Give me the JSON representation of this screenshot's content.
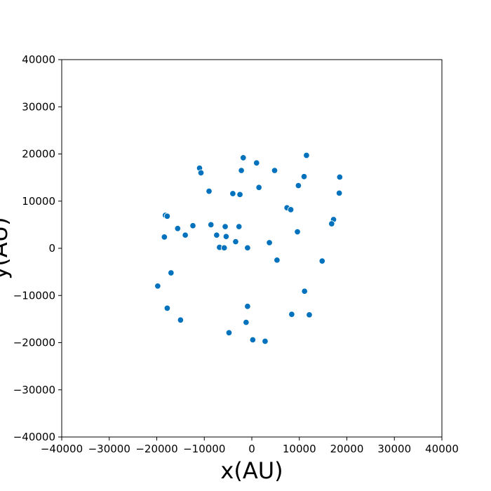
{
  "chart_data": {
    "type": "scatter",
    "title": "",
    "xlabel": "x(AU)",
    "ylabel": "y(AU)",
    "xlim": [
      -40000,
      40000
    ],
    "ylim": [
      -40000,
      40000
    ],
    "xticks": [
      -40000,
      -30000,
      -20000,
      -10000,
      0,
      10000,
      20000,
      30000,
      40000
    ],
    "yticks": [
      -40000,
      -30000,
      -20000,
      -10000,
      0,
      10000,
      20000,
      30000,
      40000
    ],
    "xtick_labels": [
      "−40000",
      "−30000",
      "−20000",
      "−10000",
      "0",
      "10000",
      "20000",
      "30000",
      "40000"
    ],
    "ytick_labels": [
      "−40000",
      "−30000",
      "−20000",
      "−10000",
      "0",
      "10000",
      "20000",
      "30000",
      "40000"
    ],
    "grid": false,
    "colors": {
      "point": "#0072bd",
      "point_edge": "#ffffff",
      "frame": "#000000"
    },
    "points": [
      {
        "x": 11500,
        "y": 19700
      },
      {
        "x": -1800,
        "y": 19200
      },
      {
        "x": 1000,
        "y": 18100
      },
      {
        "x": -11000,
        "y": 17000
      },
      {
        "x": -10700,
        "y": 16000
      },
      {
        "x": -2200,
        "y": 16500
      },
      {
        "x": 4800,
        "y": 16500
      },
      {
        "x": 11000,
        "y": 15200
      },
      {
        "x": 18500,
        "y": 15100
      },
      {
        "x": 9800,
        "y": 13300
      },
      {
        "x": 1500,
        "y": 12900
      },
      {
        "x": -9000,
        "y": 12100
      },
      {
        "x": -4000,
        "y": 11600
      },
      {
        "x": -2500,
        "y": 11400
      },
      {
        "x": 18400,
        "y": 11700
      },
      {
        "x": 7400,
        "y": 8600
      },
      {
        "x": 8200,
        "y": 8200
      },
      {
        "x": -18200,
        "y": 7000
      },
      {
        "x": -17800,
        "y": 6800
      },
      {
        "x": 17200,
        "y": 6100
      },
      {
        "x": 16800,
        "y": 5200
      },
      {
        "x": -12400,
        "y": 4800
      },
      {
        "x": -8600,
        "y": 5000
      },
      {
        "x": -5600,
        "y": 4600
      },
      {
        "x": -2700,
        "y": 4600
      },
      {
        "x": -15600,
        "y": 4200
      },
      {
        "x": 9600,
        "y": 3500
      },
      {
        "x": -14000,
        "y": 2800
      },
      {
        "x": -7400,
        "y": 2800
      },
      {
        "x": -5400,
        "y": 2500
      },
      {
        "x": -18400,
        "y": 2400
      },
      {
        "x": -3400,
        "y": 1400
      },
      {
        "x": 3700,
        "y": 1200
      },
      {
        "x": -6800,
        "y": 200
      },
      {
        "x": -5800,
        "y": 100
      },
      {
        "x": -900,
        "y": 100
      },
      {
        "x": 5300,
        "y": -2500
      },
      {
        "x": 14800,
        "y": -2700
      },
      {
        "x": -17000,
        "y": -5200
      },
      {
        "x": -19800,
        "y": -8000
      },
      {
        "x": 11100,
        "y": -9100
      },
      {
        "x": -900,
        "y": -12300
      },
      {
        "x": -17800,
        "y": -12700
      },
      {
        "x": 8400,
        "y": -14000
      },
      {
        "x": 12100,
        "y": -14100
      },
      {
        "x": -15000,
        "y": -15200
      },
      {
        "x": -1200,
        "y": -15700
      },
      {
        "x": -4800,
        "y": -17900
      },
      {
        "x": 200,
        "y": -19400
      },
      {
        "x": 2800,
        "y": -19700
      }
    ]
  }
}
